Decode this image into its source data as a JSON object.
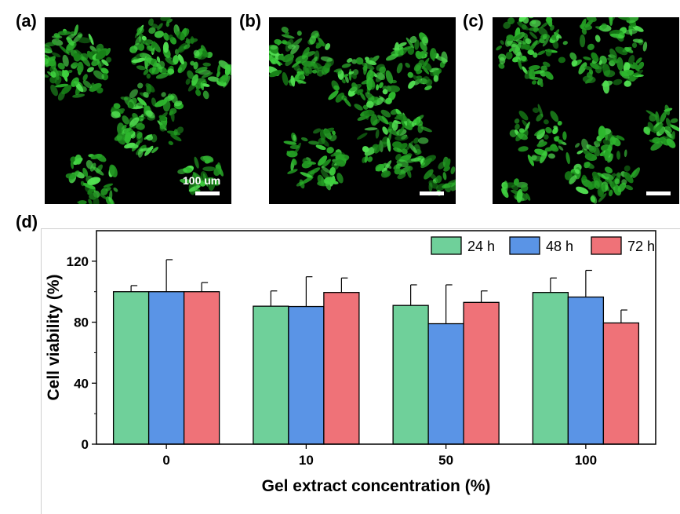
{
  "panels": {
    "a": {
      "label": "(a)",
      "scale_text": "100 um"
    },
    "b": {
      "label": "(b)"
    },
    "c": {
      "label": "(c)"
    },
    "d": {
      "label": "(d)"
    }
  },
  "chart_data": {
    "type": "bar",
    "categories": [
      "0",
      "10",
      "50",
      "100"
    ],
    "series": [
      {
        "name": "24 h",
        "color": "#6fd09a",
        "values": [
          100,
          90.5,
          91,
          99.5
        ],
        "errors": [
          4,
          10,
          13.5,
          9.5
        ]
      },
      {
        "name": "48 h",
        "color": "#5a94e6",
        "values": [
          100,
          90.3,
          79,
          96.5
        ],
        "errors": [
          21,
          19.5,
          25.5,
          17.5
        ]
      },
      {
        "name": "72 h",
        "color": "#ef7278",
        "values": [
          100,
          99.5,
          93,
          79.5
        ],
        "errors": [
          6,
          9.5,
          7.5,
          8.5
        ]
      }
    ],
    "xlabel": "Gel extract concentration (%)",
    "ylabel": "Cell viability (%)",
    "ylim": [
      0,
      140
    ],
    "yticks": [
      0,
      40,
      80,
      120
    ],
    "legend_position": "top-right",
    "grid": false
  }
}
